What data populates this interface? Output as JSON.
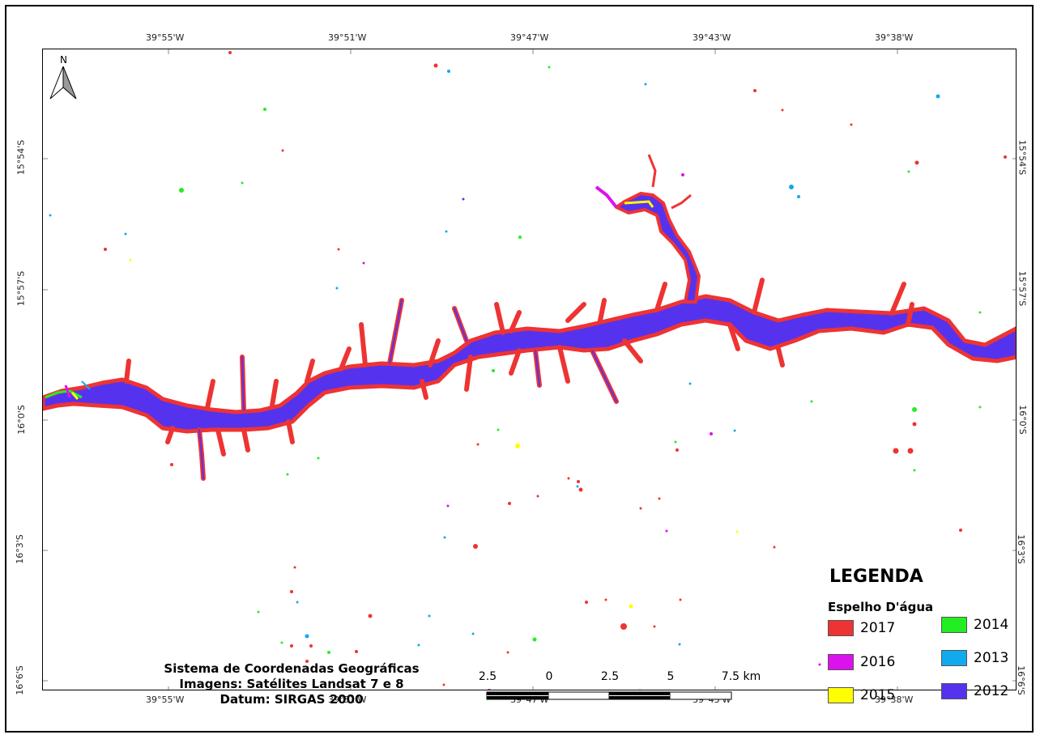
{
  "map": {
    "top_ticks": [
      "39°55'W",
      "39°51'W",
      "39°47'W",
      "39°43'W",
      "39°38'W"
    ],
    "bottom_ticks": [
      "39°55'W",
      "39°51'W",
      "39°47'W",
      "39°43'W",
      "39°38'W"
    ],
    "left_ticks": [
      "15°54'S",
      "15°57'S",
      "16°0'S",
      "16°3'S",
      "16°6'S"
    ],
    "right_ticks": [
      "15°54'S",
      "15°57'S",
      "16°0'S",
      "16°3'S",
      "16°6'S"
    ],
    "north_label": "N"
  },
  "legend": {
    "title": "LEGENDA",
    "subtitle": "Espelho D'água",
    "items": [
      {
        "label": "2017",
        "color": "#ee3333"
      },
      {
        "label": "2016",
        "color": "#dd11ee"
      },
      {
        "label": "2015",
        "color": "#ffff00"
      },
      {
        "label": "2014",
        "color": "#22ee22"
      },
      {
        "label": "2013",
        "color": "#11aaee"
      },
      {
        "label": "2012",
        "color": "#5533ee"
      }
    ]
  },
  "info": {
    "line1": "Sistema de Coordenadas Geográficas",
    "line2": "Imagens: Satélites Landsat 7 e 8",
    "line3": "Datum: SIRGAS 2000"
  },
  "scalebar": {
    "labels": [
      "2.5",
      "0",
      "2.5",
      "5",
      "7.5 km"
    ]
  }
}
